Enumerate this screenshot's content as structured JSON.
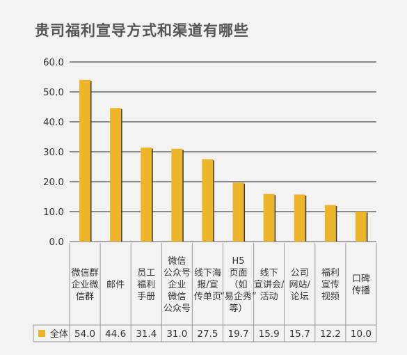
{
  "title": "贵司福利宣导方式和渠道有哪些",
  "chart_data": {
    "type": "bar",
    "title": "贵司福利宣导方式和渠道有哪些",
    "xlabel": "",
    "ylabel": "",
    "ylim": [
      0,
      60
    ],
    "yticks": [
      "0.0",
      "10.0",
      "20.0",
      "30.0",
      "40.0",
      "50.0",
      "60.0"
    ],
    "grid": true,
    "legend": "bottom-left (in data table)",
    "categories": [
      [
        "微信群",
        "企业微",
        "信群"
      ],
      [
        "邮件"
      ],
      [
        "员工",
        "福利",
        "手册"
      ],
      [
        "微信",
        "公众号",
        "企业",
        "微信",
        "公众号"
      ],
      [
        "线下海",
        "报/宣",
        "传单页"
      ],
      [
        "H5",
        "页面",
        "（如",
        "“易企秀”",
        "等）"
      ],
      [
        "线下",
        "宣讲会/",
        "活动"
      ],
      [
        "公司",
        "网站/",
        "论坛"
      ],
      [
        "福利",
        "宣传",
        "视频"
      ],
      [
        "口碑",
        "传播"
      ]
    ],
    "series": [
      {
        "name": "全体",
        "color": "#ECB52A",
        "values": [
          54.0,
          44.6,
          31.4,
          31.0,
          27.5,
          19.7,
          15.9,
          15.7,
          12.2,
          10.0
        ],
        "labels": [
          "54.0",
          "44.6",
          "31.4",
          "31.0",
          "27.5",
          "19.7",
          "15.9",
          "15.7",
          "12.2",
          "10.0"
        ]
      }
    ]
  }
}
